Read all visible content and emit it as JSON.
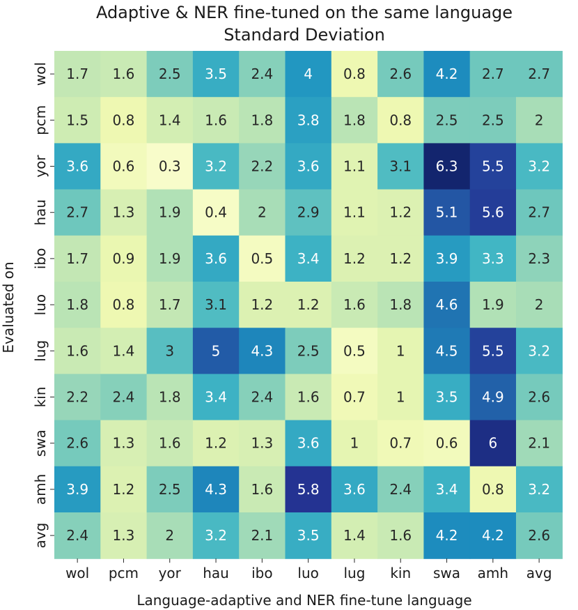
{
  "chart_data": {
    "type": "heatmap",
    "title": "Adaptive & NER fine-tuned on the same language",
    "subtitle": "Standard Deviation",
    "xlabel": "Language-adaptive and NER fine-tune language",
    "ylabel": "Evaluated on",
    "x_categories": [
      "wol",
      "pcm",
      "yor",
      "hau",
      "ibo",
      "luo",
      "lug",
      "kin",
      "swa",
      "amh",
      "avg"
    ],
    "y_categories": [
      "wol",
      "pcm",
      "yor",
      "hau",
      "ibo",
      "luo",
      "lug",
      "kin",
      "swa",
      "amh",
      "avg"
    ],
    "colormap": "YlGnBu",
    "value_range": [
      0,
      6.6
    ],
    "values": [
      [
        1.7,
        1.6,
        2.5,
        3.5,
        2.4,
        4,
        0.8,
        2.6,
        4.2,
        2.7,
        2.7
      ],
      [
        1.5,
        0.8,
        1.4,
        1.6,
        1.8,
        3.8,
        1.8,
        0.8,
        2.5,
        2.5,
        2
      ],
      [
        3.6,
        0.6,
        0.3,
        3.2,
        2.2,
        3.6,
        1.1,
        3.1,
        6.3,
        5.5,
        3.2
      ],
      [
        2.7,
        1.3,
        1.9,
        0.4,
        2,
        2.9,
        1.1,
        1.2,
        5.1,
        5.6,
        2.7
      ],
      [
        1.7,
        0.9,
        1.9,
        3.6,
        0.5,
        3.4,
        1.2,
        1.2,
        3.9,
        3.3,
        2.3
      ],
      [
        1.8,
        0.8,
        1.7,
        3.1,
        1.2,
        1.2,
        1.6,
        1.8,
        4.6,
        1.9,
        2
      ],
      [
        1.6,
        1.4,
        3,
        5,
        4.3,
        2.5,
        0.5,
        1,
        4.5,
        5.5,
        3.2
      ],
      [
        2.2,
        2.4,
        1.8,
        3.4,
        2.4,
        1.6,
        0.7,
        1,
        3.5,
        4.9,
        2.6
      ],
      [
        2.6,
        1.3,
        1.6,
        1.2,
        1.3,
        3.6,
        1,
        0.7,
        0.6,
        6,
        2.1
      ],
      [
        3.9,
        1.2,
        2.5,
        4.3,
        1.6,
        5.8,
        3.6,
        2.4,
        3.4,
        0.8,
        3.2
      ],
      [
        2.4,
        1.3,
        2,
        3.2,
        2.1,
        3.5,
        1.4,
        1.6,
        4.2,
        4.2,
        2.6
      ]
    ]
  }
}
